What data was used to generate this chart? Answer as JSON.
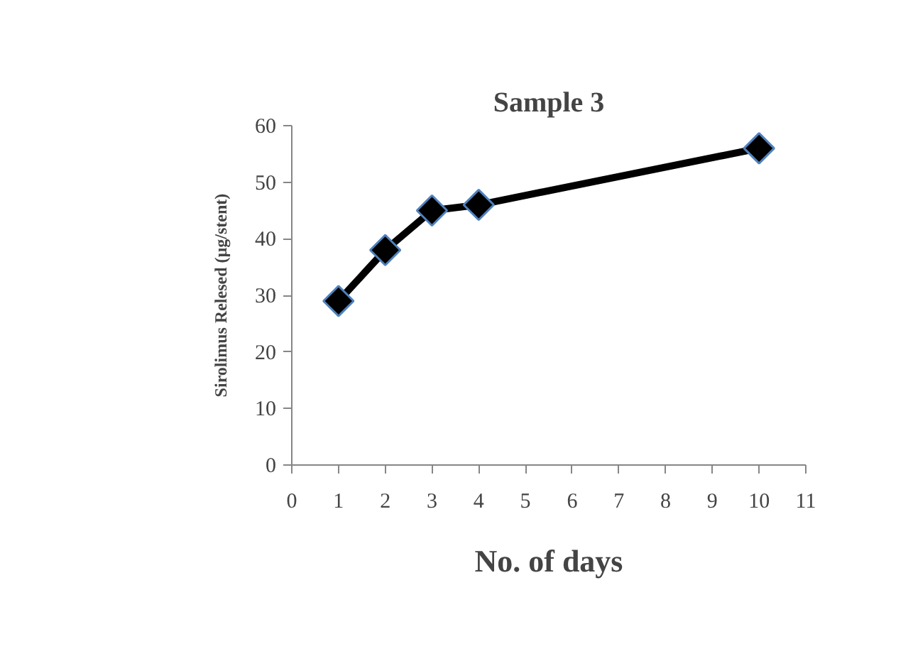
{
  "chart_data": {
    "type": "line",
    "title": "Sample 3",
    "xlabel": "No. of days",
    "ylabel": "Sirolimus Relesed (µg/stent)",
    "x": [
      1,
      2,
      3,
      4,
      10
    ],
    "series": [
      {
        "color": "#000000",
        "values": [
          29,
          38,
          45,
          46,
          56
        ]
      }
    ],
    "xlim": [
      0,
      11
    ],
    "xticks": [
      0,
      1,
      2,
      3,
      4,
      5,
      6,
      7,
      8,
      9,
      10,
      11
    ],
    "ylim": [
      0,
      60
    ],
    "yticks": [
      0,
      10,
      20,
      30,
      40,
      50,
      60
    ],
    "grid": false,
    "marker": "diamond",
    "line_style": "solid"
  }
}
